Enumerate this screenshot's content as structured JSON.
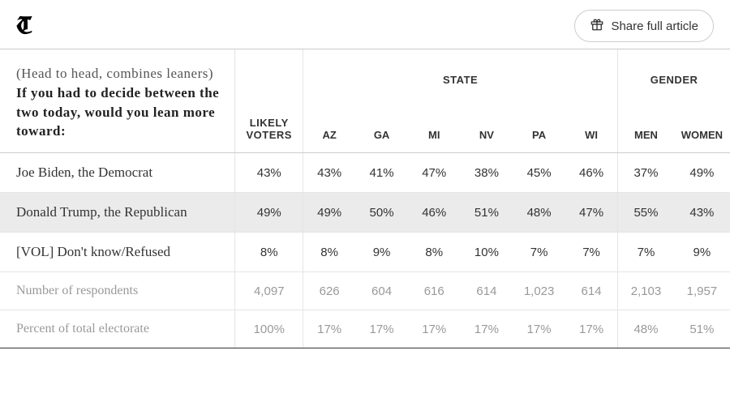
{
  "topbar": {
    "logo": "T",
    "share_label": "Share full article"
  },
  "table": {
    "question_prefix": "(Head to head, combines leaners) ",
    "question_bold": "If you had to decide between the two today, would you lean more toward:",
    "col_likely": "LIKELY VOTERS",
    "group_state": "STATE",
    "group_gender": "GENDER",
    "state_cols": [
      "AZ",
      "GA",
      "MI",
      "NV",
      "PA",
      "WI"
    ],
    "gender_cols": [
      "MEN",
      "WOMEN"
    ],
    "rows": [
      {
        "label": "Joe Biden, the Democrat",
        "shade": false,
        "meta": false,
        "likely": "43%",
        "states": [
          "43%",
          "41%",
          "47%",
          "38%",
          "45%",
          "46%"
        ],
        "gender": [
          "37%",
          "49%"
        ]
      },
      {
        "label": "Donald Trump, the Republican",
        "shade": true,
        "meta": false,
        "likely": "49%",
        "states": [
          "49%",
          "50%",
          "46%",
          "51%",
          "48%",
          "47%"
        ],
        "gender": [
          "55%",
          "43%"
        ]
      },
      {
        "label": "[VOL] Don't know/Refused",
        "shade": false,
        "meta": false,
        "likely": "8%",
        "states": [
          "8%",
          "9%",
          "8%",
          "10%",
          "7%",
          "7%"
        ],
        "gender": [
          "7%",
          "9%"
        ]
      },
      {
        "label": "Number of respondents",
        "shade": false,
        "meta": true,
        "likely": "4,097",
        "states": [
          "626",
          "604",
          "616",
          "614",
          "1,023",
          "614"
        ],
        "gender": [
          "2,103",
          "1,957"
        ]
      },
      {
        "label": "Percent of total electorate",
        "shade": false,
        "meta": true,
        "likely": "100%",
        "states": [
          "17%",
          "17%",
          "17%",
          "17%",
          "17%",
          "17%"
        ],
        "gender": [
          "48%",
          "51%"
        ]
      }
    ]
  },
  "style": {
    "background": "#ffffff",
    "border_color": "#cccccc",
    "light_border": "#e5e5e5",
    "text_color": "#333333",
    "meta_color": "#999999",
    "shade_bg": "#ebebeb",
    "header_fontsize": 13,
    "body_fontsize": 15,
    "label_fontsize": 17
  }
}
